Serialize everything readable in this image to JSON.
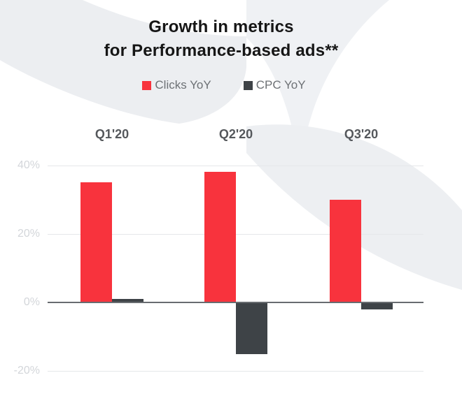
{
  "title": {
    "line1": "Growth in metrics",
    "line2": "for Performance-based ads**"
  },
  "chart_data": {
    "type": "bar",
    "title": "Growth in metrics for Performance-based ads**",
    "categories": [
      "Q1'20",
      "Q2'20",
      "Q3'20"
    ],
    "series": [
      {
        "name": "Clicks YoY",
        "color": "#F8333D",
        "values": [
          35,
          38,
          30
        ]
      },
      {
        "name": "CPC YoY",
        "color": "#3E4347",
        "values": [
          1,
          -15,
          -2
        ]
      }
    ],
    "unit": "%",
    "yticks": [
      40,
      20,
      0,
      -20
    ],
    "yticklabels": [
      "40%",
      "20%",
      "0%",
      "-20%"
    ],
    "ylim": [
      -25,
      45
    ],
    "gridlines": true,
    "legend_position": "top",
    "baseline": 0
  },
  "colors": {
    "axis_line": "#686C70",
    "gridline": "#E5E7EA",
    "tick_label": "#D3D6DA",
    "category_label": "#55585C",
    "legend_text": "#6D7175",
    "title_text": "#161616",
    "background": "#FFFFFF"
  },
  "decor": {
    "swoosh_topleft_color": "#ECEEF1",
    "swoosh_topmid_color": "#EFF1F4",
    "swoosh_right_color": "#EDEFF2"
  }
}
